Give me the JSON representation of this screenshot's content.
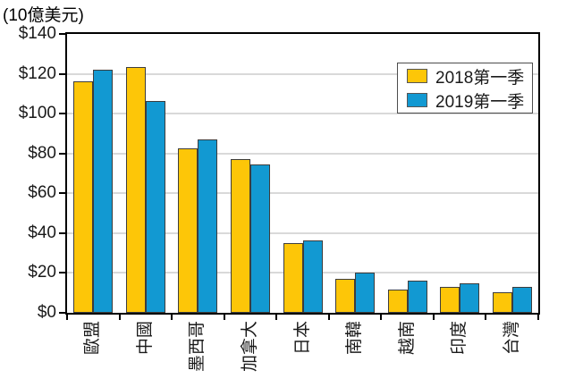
{
  "unit_label": "(10億美元)",
  "colors": {
    "bar_2018": "#fdc608",
    "bar_2019": "#1299d2",
    "bar_border": "#3d3d3d",
    "grid": "#d9d9d9",
    "axis": "#000000",
    "text": "#1a1a1a",
    "legend_border": "#4d4d4d",
    "background": "#ffffff"
  },
  "chart_data": {
    "type": "bar",
    "title": "(10億美元)",
    "categories": [
      "歐盟",
      "中國",
      "墨西哥",
      "加拿大",
      "日本",
      "南韓",
      "越南",
      "印度",
      "台灣"
    ],
    "series": [
      {
        "name": "2018第一季",
        "color": "#fdc608",
        "values": [
          116,
          123.5,
          82.5,
          77,
          35,
          17,
          11.5,
          13,
          10.5
        ]
      },
      {
        "name": "2019第一季",
        "color": "#1299d2",
        "values": [
          122,
          106.5,
          87,
          74.5,
          36.5,
          20,
          16.3,
          14.8,
          13
        ]
      }
    ],
    "xlabel": "",
    "ylabel": "",
    "ylim": [
      0,
      140
    ],
    "ytick_step": 20,
    "ytick_labels": [
      "$0",
      "$20",
      "$40",
      "$60",
      "$80",
      "$100",
      "$120",
      "$140"
    ],
    "grid": "horizontal",
    "legend_position": "top-right",
    "x_label_rotation": -90
  }
}
